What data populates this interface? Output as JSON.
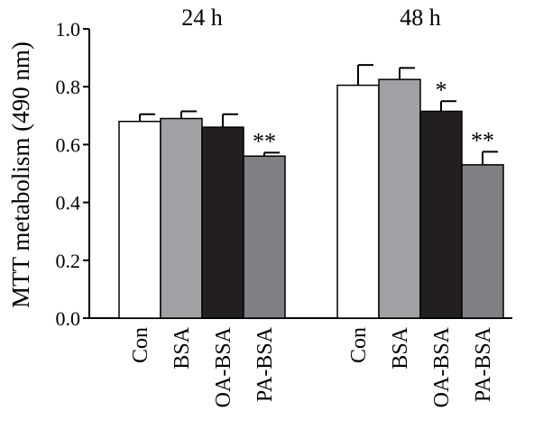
{
  "chart_data": {
    "type": "bar",
    "ylabel": "MTT metabolism (490 nm)",
    "ylim": [
      0,
      1.0
    ],
    "yticks": [
      "0.0",
      "0.2",
      "0.4",
      "0.6",
      "0.8",
      "1.0"
    ],
    "grid": false,
    "groups": [
      {
        "title": "24 h",
        "bars": [
          {
            "category": "Con",
            "value": 0.68,
            "error": 0.025,
            "fill": "#ffffff",
            "sig": ""
          },
          {
            "category": "BSA",
            "value": 0.69,
            "error": 0.025,
            "fill": "#a0a1a4",
            "sig": ""
          },
          {
            "category": "OA-BSA",
            "value": 0.66,
            "error": 0.045,
            "fill": "#231f20",
            "sig": ""
          },
          {
            "category": "PA-BSA",
            "value": 0.56,
            "error": 0.012,
            "fill": "#7e8083",
            "sig": "**"
          }
        ]
      },
      {
        "title": "48 h",
        "bars": [
          {
            "category": "Con",
            "value": 0.805,
            "error": 0.07,
            "fill": "#ffffff",
            "sig": ""
          },
          {
            "category": "BSA",
            "value": 0.825,
            "error": 0.04,
            "fill": "#a0a1a4",
            "sig": ""
          },
          {
            "category": "OA-BSA",
            "value": 0.715,
            "error": 0.035,
            "fill": "#231f20",
            "sig": "*"
          },
          {
            "category": "PA-BSA",
            "value": 0.53,
            "error": 0.045,
            "fill": "#7e8083",
            "sig": "**"
          }
        ]
      }
    ]
  }
}
